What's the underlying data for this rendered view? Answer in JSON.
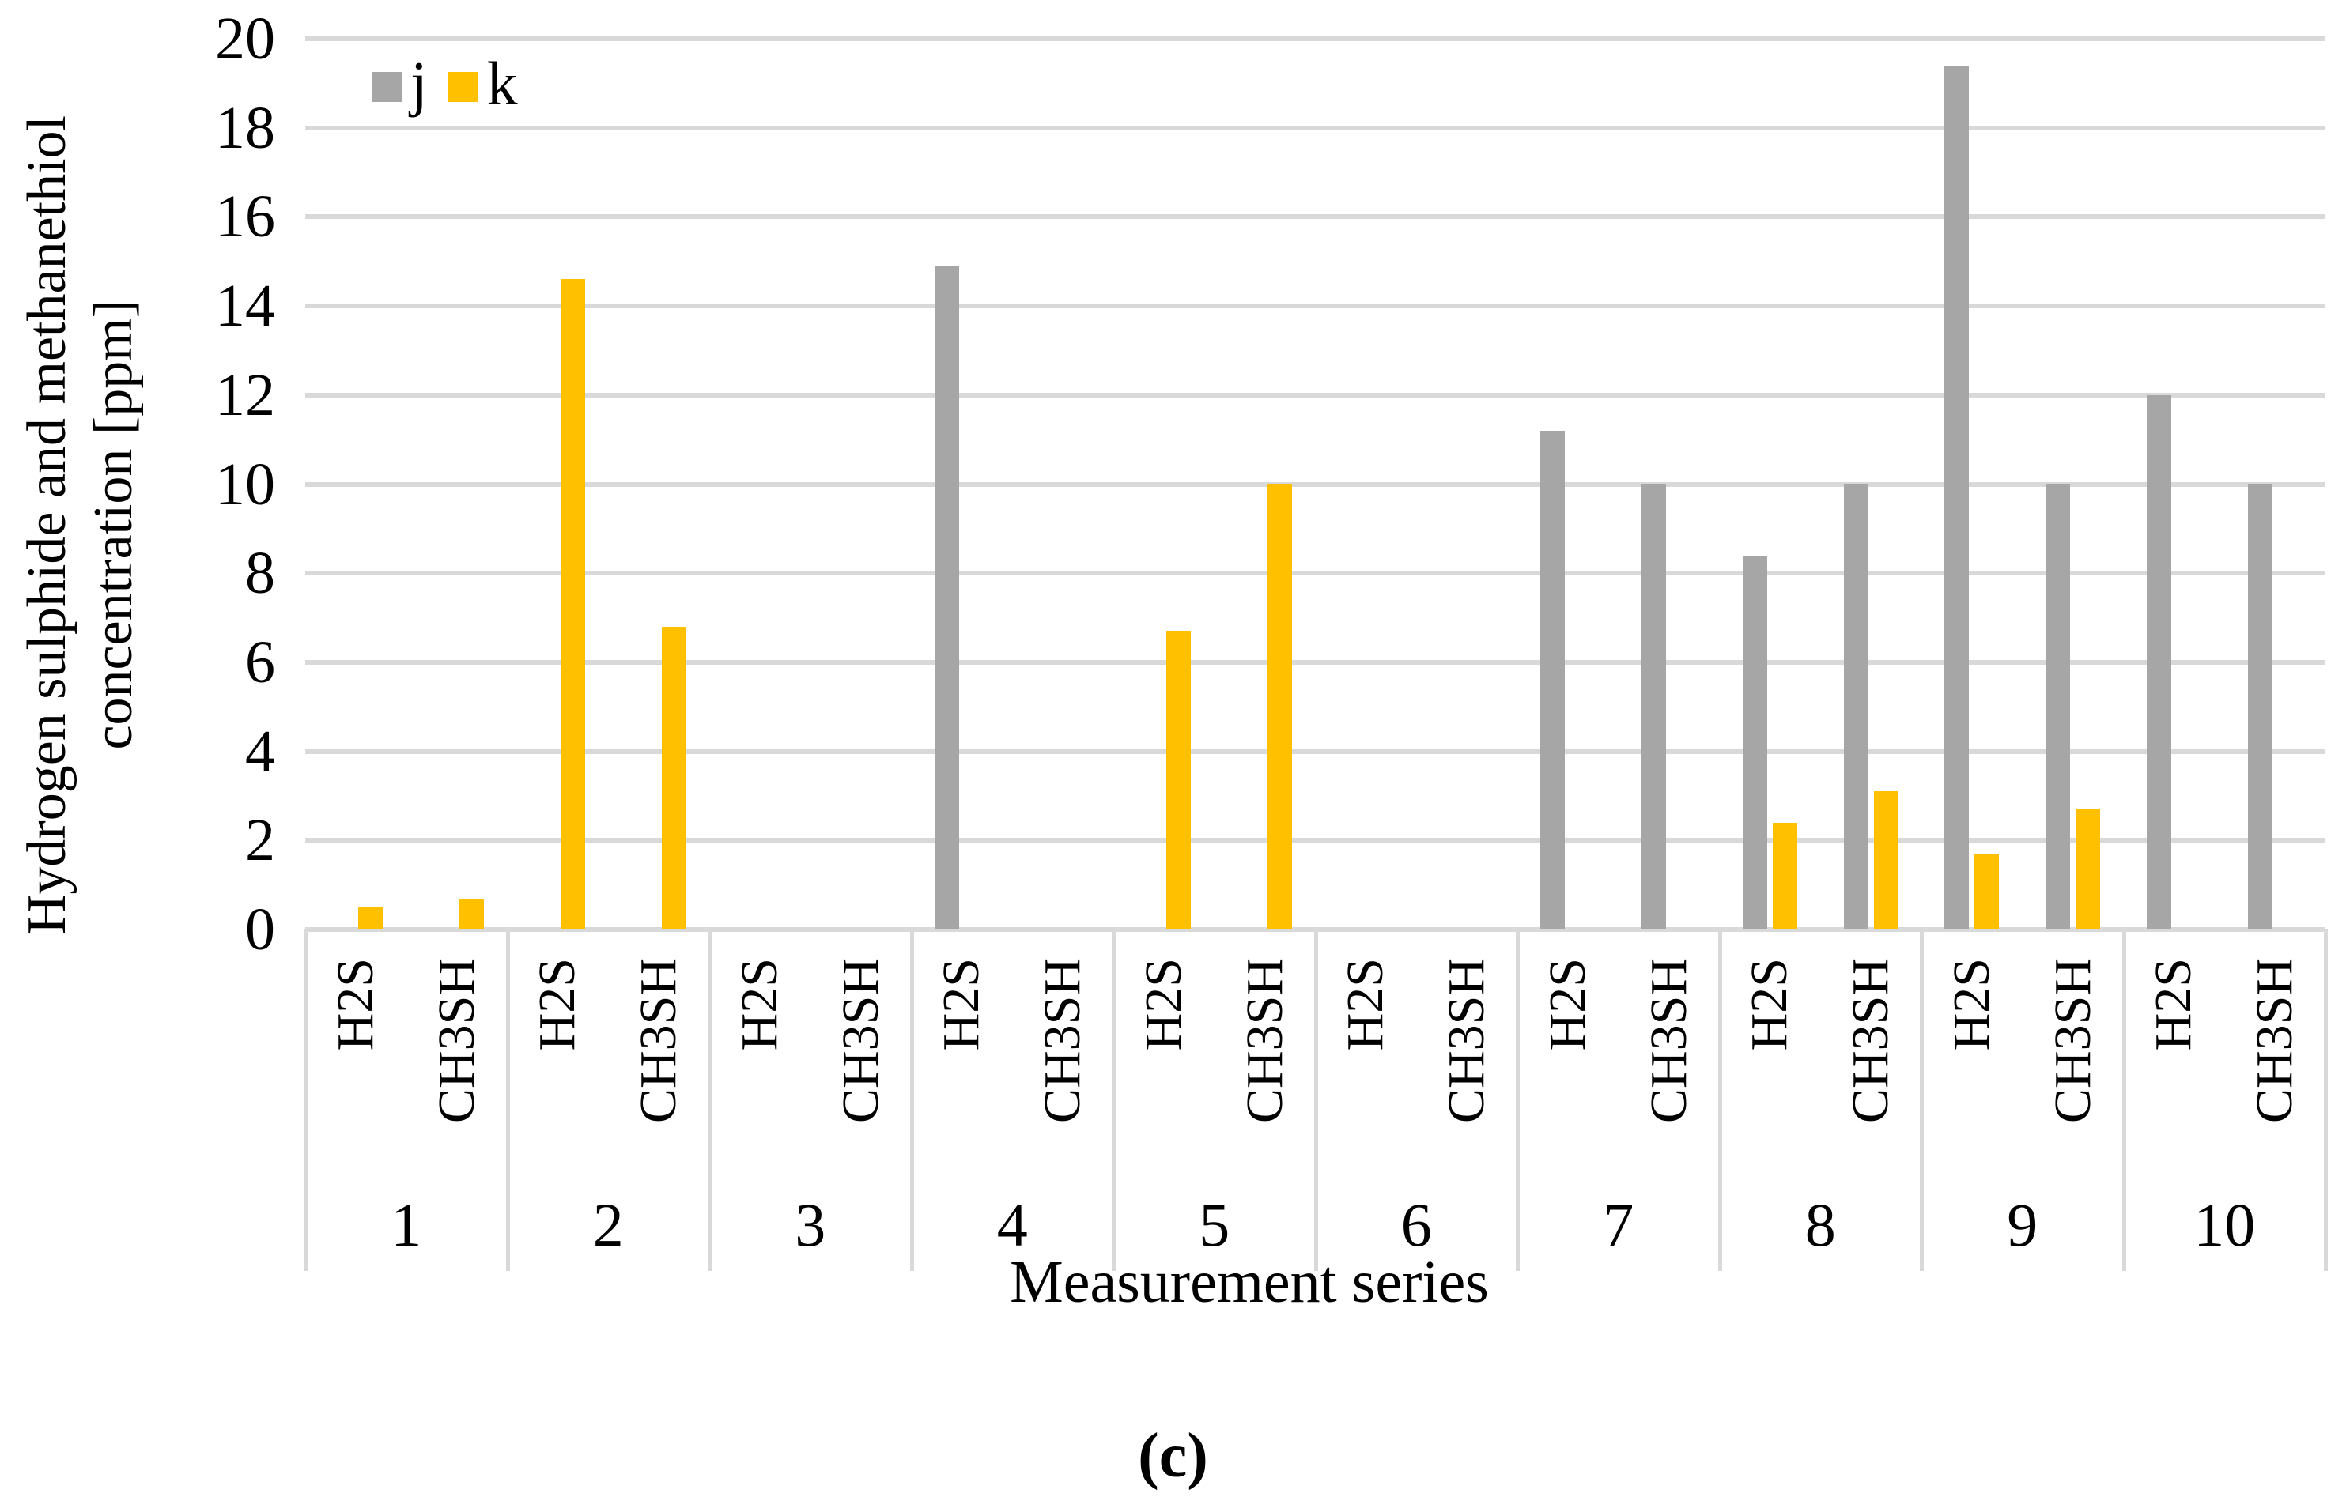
{
  "figure": {
    "caption": "(c)"
  },
  "chart_data": {
    "type": "bar",
    "title": "",
    "xlabel": "Measurement series",
    "ylabel_line1": "Hydrogen sulphide and methanethiol",
    "ylabel_line2": "concentration [ppm]",
    "ylim": [
      0,
      20
    ],
    "yticks": [
      0,
      2,
      4,
      6,
      8,
      10,
      12,
      14,
      16,
      18,
      20
    ],
    "grid": true,
    "legend_position": "top-left",
    "groups": [
      "1",
      "2",
      "3",
      "4",
      "5",
      "6",
      "7",
      "8",
      "9",
      "10"
    ],
    "categories_per_group": [
      "H2S",
      "CH3SH"
    ],
    "series": [
      {
        "name": "j",
        "color": "#A6A6A6",
        "values": {
          "H2S": [
            0,
            0,
            0,
            14.9,
            0,
            0,
            11.2,
            8.4,
            19.4,
            12
          ],
          "CH3SH": [
            0,
            0,
            0,
            0,
            0,
            0,
            10,
            10,
            10,
            10
          ]
        }
      },
      {
        "name": "k",
        "color": "#FFC000",
        "values": {
          "H2S": [
            0.5,
            14.6,
            0,
            0,
            6.7,
            0,
            0,
            2.4,
            1.7,
            0
          ],
          "CH3SH": [
            0.7,
            6.8,
            0,
            0,
            10,
            0,
            0,
            3.1,
            2.7,
            0
          ]
        }
      }
    ],
    "gridline_color": "#D9D9D9",
    "text_color": "#000000",
    "background": "#FFFFFF"
  }
}
